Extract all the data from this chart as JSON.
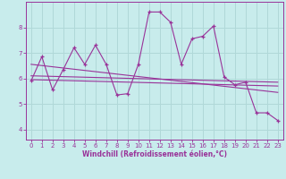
{
  "xlabel": "Windchill (Refroidissement éolien,°C)",
  "bg_color": "#c8ecec",
  "grid_color": "#b0d8d8",
  "line_color": "#993399",
  "xlim": [
    -0.5,
    23.5
  ],
  "ylim": [
    3.6,
    9.0
  ],
  "yticks": [
    4,
    5,
    6,
    7,
    8
  ],
  "xticks": [
    0,
    1,
    2,
    3,
    4,
    5,
    6,
    7,
    8,
    9,
    10,
    11,
    12,
    13,
    14,
    15,
    16,
    17,
    18,
    19,
    20,
    21,
    22,
    23
  ],
  "series1_x": [
    0,
    1,
    2,
    3,
    4,
    5,
    6,
    7,
    8,
    9,
    10,
    11,
    12,
    13,
    14,
    15,
    16,
    17,
    18,
    19,
    20,
    21,
    22,
    23
  ],
  "series1_y": [
    5.9,
    6.85,
    5.55,
    6.35,
    7.2,
    6.55,
    7.3,
    6.55,
    5.35,
    5.4,
    6.55,
    8.6,
    8.6,
    8.2,
    6.55,
    7.55,
    7.65,
    8.05,
    6.05,
    5.75,
    5.85,
    4.65,
    4.65,
    4.35
  ],
  "series2_x": [
    0,
    23
  ],
  "series2_y": [
    6.55,
    5.45
  ],
  "series3_x": [
    0,
    23
  ],
  "series3_y": [
    5.95,
    5.7
  ],
  "series4_x": [
    0,
    23
  ],
  "series4_y": [
    6.1,
    5.85
  ]
}
